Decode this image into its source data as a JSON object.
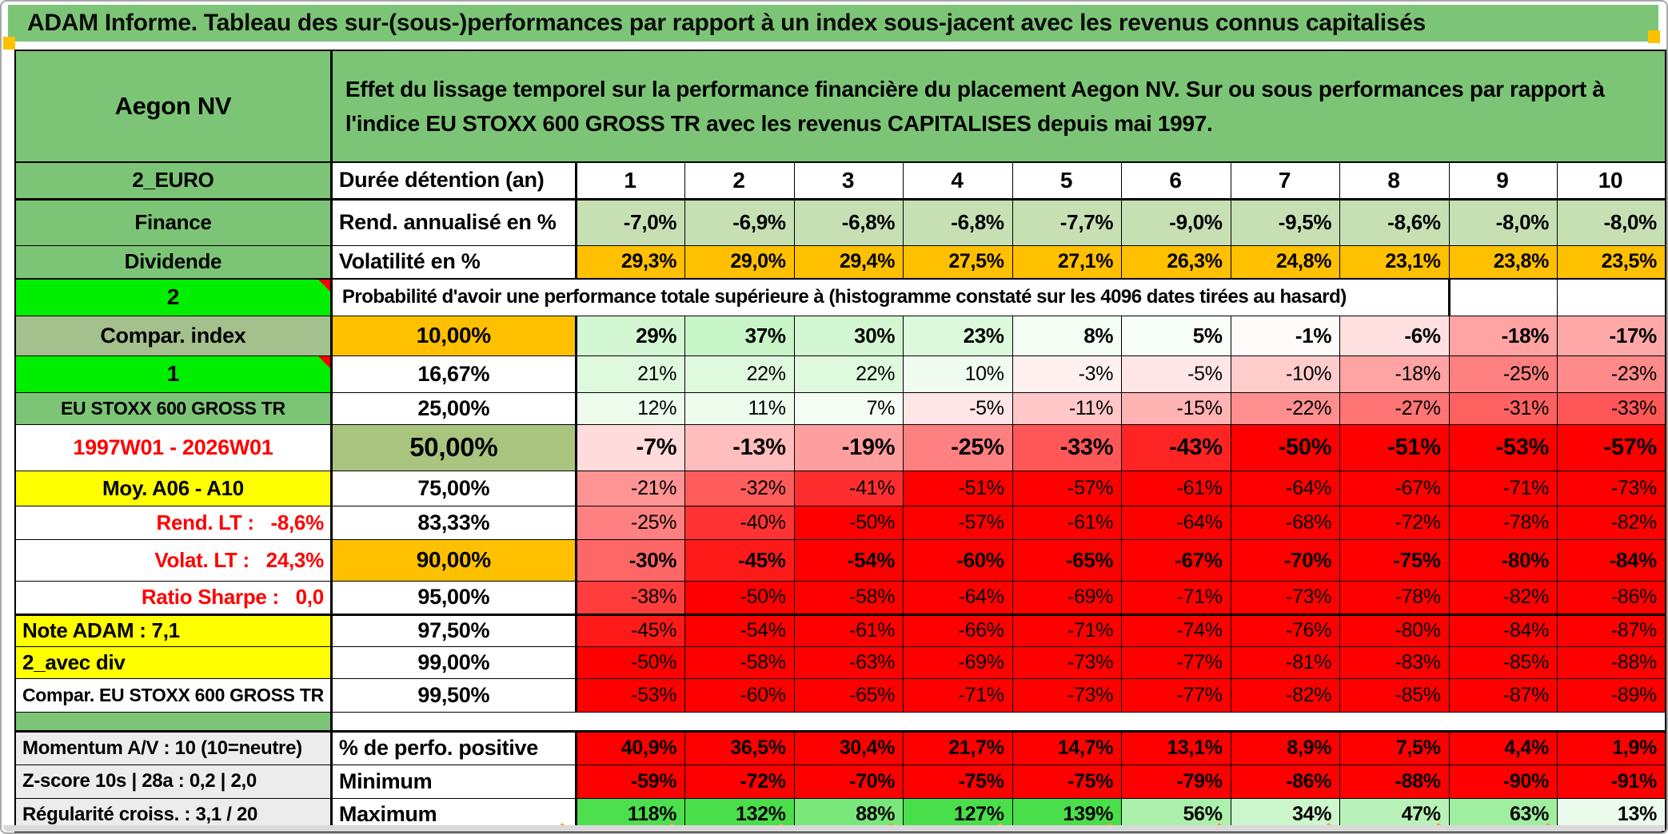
{
  "title": "ADAM Informe. Tableau des sur-(sous-)performances par rapport à un index sous-jacent avec les revenus connus capitalisés",
  "header": {
    "name": "Aegon NV",
    "description": "Effet du lissage temporel sur la performance financière du placement Aegon NV. Sur ou sous performances par rapport à l'indice EU STOXX 600 GROSS TR avec les revenus CAPITALISES depuis mai 1997."
  },
  "colors": {
    "title_bg": "#7cc576",
    "label_green": "#7cc576",
    "label_green_muted": "#a4c08d",
    "bright_green": "#00ee00",
    "yellow": "#ffff00",
    "orange": "#ffc000",
    "sage": "#a9c47f",
    "finance_fill": "#c6e0b4",
    "flat_red": "#fe0000",
    "gray_label": "#ececec",
    "red_text": "#ff0000",
    "scale_pos": "#4ade4a",
    "scale_neg": "#ff0000",
    "scale_pos_cap": 120,
    "scale_neg_cap": 50
  },
  "table": {
    "rows": [
      {
        "id": "duration",
        "left": {
          "text": "2_EURO",
          "bg": "label_green"
        },
        "mid": {
          "text": "Durée détention (an)",
          "align": "left",
          "size": 27
        },
        "cells": {
          "fill": "#ffffff",
          "bold": true,
          "align": "center",
          "size": 28,
          "values": [
            "1",
            "2",
            "3",
            "4",
            "5",
            "6",
            "7",
            "8",
            "9",
            "10"
          ]
        }
      },
      {
        "id": "finance",
        "left": {
          "text": "Finance",
          "bg": "label_green"
        },
        "mid": {
          "text": "Rend. annualisé en %",
          "align": "left",
          "size": 27
        },
        "cells": {
          "fill": "finance_fill",
          "bold": true,
          "size": 26,
          "values": [
            "-7,0%",
            "-6,9%",
            "-6,8%",
            "-6,8%",
            "-7,7%",
            "-9,0%",
            "-9,5%",
            "-8,6%",
            "-8,0%",
            "-8,0%"
          ]
        }
      },
      {
        "id": "dividende",
        "left": {
          "text": "Dividende",
          "bg": "label_green"
        },
        "mid": {
          "text": "Volatilité en %",
          "align": "left",
          "size": 27
        },
        "cells": {
          "fill": "orange",
          "bold": true,
          "size": 25,
          "values": [
            "29,3%",
            "29,0%",
            "29,4%",
            "27,5%",
            "27,1%",
            "26,3%",
            "24,8%",
            "23,1%",
            "23,8%",
            "23,5%"
          ]
        }
      },
      {
        "id": "probability",
        "left": {
          "text": "2",
          "bg": "bright_green",
          "marker": true,
          "size": 28
        },
        "span": {
          "text": "Probabilité d'avoir une performance totale supérieure à (histogramme constaté sur les 4096 dates tirées au hasard)",
          "cols": 9
        },
        "empty_cells": 2
      },
      {
        "id": "p10",
        "left": {
          "text": "Compar. index",
          "bg": "label_green_muted",
          "size": 27
        },
        "mid": {
          "text": "10,00%",
          "bg": "orange",
          "size": 28
        },
        "cells": {
          "fill": "scale",
          "bold": true,
          "size": 26,
          "values": [
            "29%",
            "37%",
            "30%",
            "23%",
            "8%",
            "5%",
            "-1%",
            "-6%",
            "-18%",
            "-17%"
          ]
        }
      },
      {
        "id": "p16",
        "left": {
          "text": "1",
          "bg": "bright_green",
          "marker": true,
          "size": 28
        },
        "mid": {
          "text": "16,67%",
          "size": 27
        },
        "cells": {
          "fill": "scale",
          "size": 25,
          "values": [
            "21%",
            "22%",
            "22%",
            "10%",
            "-3%",
            "-5%",
            "-10%",
            "-18%",
            "-25%",
            "-23%"
          ]
        }
      },
      {
        "id": "p25",
        "left": {
          "text": "EU STOXX 600 GROSS TR",
          "bg": "label_green",
          "size": 23
        },
        "mid": {
          "text": "25,00%",
          "size": 27
        },
        "cells": {
          "fill": "scale",
          "size": 25,
          "values": [
            "12%",
            "11%",
            "7%",
            "-5%",
            "-11%",
            "-15%",
            "-22%",
            "-27%",
            "-31%",
            "-33%"
          ]
        }
      },
      {
        "id": "p50",
        "left": {
          "text": "1997W01 - 2026W01",
          "fg": "red_text",
          "size": 27
        },
        "mid": {
          "text": "50,00%",
          "bg": "sage",
          "size": 33
        },
        "cells": {
          "fill": "scale",
          "bold": true,
          "size": 29,
          "values": [
            "-7%",
            "-13%",
            "-19%",
            "-25%",
            "-33%",
            "-43%",
            "-50%",
            "-51%",
            "-53%",
            "-57%"
          ]
        }
      },
      {
        "id": "p75",
        "left": {
          "text": "Moy. A06 - A10",
          "bg": "yellow",
          "size": 26
        },
        "mid": {
          "text": "75,00%",
          "size": 27
        },
        "cells": {
          "fill": "scale",
          "size": 25,
          "values": [
            "-21%",
            "-32%",
            "-41%",
            "-51%",
            "-57%",
            "-61%",
            "-64%",
            "-67%",
            "-71%",
            "-73%"
          ]
        }
      },
      {
        "id": "p83",
        "left": {
          "text": "Rend. LT :   -8,6%",
          "fg": "red_text",
          "align": "right",
          "size": 26
        },
        "mid": {
          "text": "83,33%",
          "size": 27
        },
        "cells": {
          "fill": "scale",
          "size": 25,
          "values": [
            "-25%",
            "-40%",
            "-50%",
            "-57%",
            "-61%",
            "-64%",
            "-68%",
            "-72%",
            "-78%",
            "-82%"
          ]
        }
      },
      {
        "id": "p90",
        "left": {
          "text": "Volat. LT :   24,3%",
          "fg": "red_text",
          "align": "right",
          "size": 26
        },
        "mid": {
          "text": "90,00%",
          "bg": "orange",
          "size": 28
        },
        "cells": {
          "fill": "scale",
          "bold": true,
          "size": 26,
          "values": [
            "-30%",
            "-45%",
            "-54%",
            "-60%",
            "-65%",
            "-67%",
            "-70%",
            "-75%",
            "-80%",
            "-84%"
          ]
        }
      },
      {
        "id": "p95",
        "left": {
          "text": "Ratio Sharpe :   0,0",
          "fg": "red_text",
          "align": "right",
          "size": 26
        },
        "mid": {
          "text": "95,00%",
          "size": 27
        },
        "cells": {
          "fill": "scale",
          "size": 25,
          "values": [
            "-38%",
            "-50%",
            "-58%",
            "-64%",
            "-69%",
            "-71%",
            "-73%",
            "-78%",
            "-82%",
            "-86%"
          ]
        }
      },
      {
        "id": "p97",
        "thick_top": true,
        "left": {
          "text": "Note ADAM : 7,1",
          "bg": "yellow",
          "align": "left",
          "size": 26
        },
        "mid": {
          "text": "97,50%",
          "size": 27
        },
        "cells": {
          "fill": "scale",
          "size": 25,
          "values": [
            "-45%",
            "-54%",
            "-61%",
            "-66%",
            "-71%",
            "-74%",
            "-76%",
            "-80%",
            "-84%",
            "-87%"
          ]
        }
      },
      {
        "id": "p99",
        "left": {
          "text": "2_avec div",
          "bg": "yellow",
          "align": "left",
          "size": 26
        },
        "mid": {
          "text": "99,00%",
          "size": 27
        },
        "cells": {
          "fill": "scale",
          "size": 25,
          "values": [
            "-50%",
            "-58%",
            "-63%",
            "-69%",
            "-73%",
            "-77%",
            "-81%",
            "-83%",
            "-85%",
            "-88%"
          ]
        }
      },
      {
        "id": "p995",
        "left": {
          "text": "Compar. EU STOXX 600 GROSS TR",
          "size": 23
        },
        "mid": {
          "text": "99,50%",
          "size": 27
        },
        "cells": {
          "fill": "scale",
          "size": 25,
          "values": [
            "-53%",
            "-60%",
            "-65%",
            "-71%",
            "-73%",
            "-77%",
            "-82%",
            "-85%",
            "-87%",
            "-89%"
          ]
        }
      },
      {
        "id": "spacer",
        "left": {
          "text": "",
          "bg": "label_green"
        },
        "spacer": true
      },
      {
        "id": "momentum",
        "left": {
          "text": "Momentum A/V : 10 (10=neutre)",
          "bg": "gray_label",
          "align": "left",
          "size": 24
        },
        "mid": {
          "text": "% de perfo. positive",
          "align": "left",
          "size": 27
        },
        "cells": {
          "fill": "flat_red",
          "bold": true,
          "size": 25,
          "values": [
            "40,9%",
            "36,5%",
            "30,4%",
            "21,7%",
            "14,7%",
            "13,1%",
            "8,9%",
            "7,5%",
            "4,4%",
            "1,9%"
          ]
        }
      },
      {
        "id": "zscore",
        "left": {
          "text": "Z-score 10s | 28a : 0,2 | 2,0",
          "bg": "gray_label",
          "align": "left",
          "size": 24
        },
        "mid": {
          "text": "Minimum",
          "align": "left",
          "size": 27
        },
        "cells": {
          "fill": "flat_red",
          "bold": true,
          "size": 25,
          "values": [
            "-59%",
            "-72%",
            "-70%",
            "-75%",
            "-75%",
            "-79%",
            "-86%",
            "-88%",
            "-90%",
            "-91%"
          ]
        }
      },
      {
        "id": "regularite",
        "left": {
          "text": "Régularité croiss. : 3,1 / 20",
          "bg": "gray_label",
          "align": "left",
          "size": 24
        },
        "mid": {
          "text": "Maximum",
          "align": "left",
          "size": 27
        },
        "cells": {
          "fill": "scale",
          "bold": true,
          "size": 25,
          "values": [
            "118%",
            "132%",
            "88%",
            "127%",
            "139%",
            "56%",
            "34%",
            "47%",
            "63%",
            "13%"
          ]
        }
      }
    ]
  }
}
